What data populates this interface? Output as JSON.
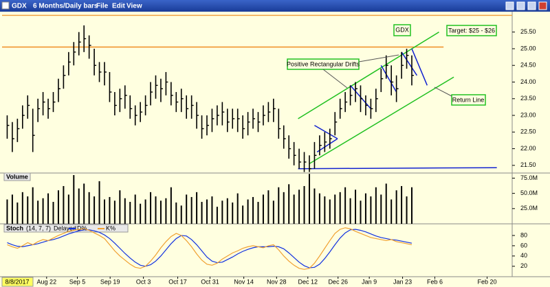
{
  "toolbar": {
    "symbol": "GDX",
    "period": "6 Months/Daily bars",
    "menus": [
      "File",
      "Edit",
      "View"
    ]
  },
  "annotations": [
    "GDX",
    "Target: $25 - $26",
    "Positive Rectangular Drifts",
    "Return Line"
  ],
  "chart_data": [
    {
      "type": "ohlc",
      "color": "#000000",
      "xlim": [
        -1,
        98.6
      ],
      "ylim": [
        21.27,
        26.05
      ],
      "yticks": [
        {
          "value": 21.5,
          "label": "21.50"
        },
        {
          "value": 22,
          "label": "22.00"
        },
        {
          "value": 22.5,
          "label": "22.50"
        },
        {
          "value": 23,
          "label": "23.00"
        },
        {
          "value": 23.5,
          "label": "23.50"
        },
        {
          "value": 24,
          "label": "24.00"
        },
        {
          "value": 24.5,
          "label": "24.50"
        },
        {
          "value": 25,
          "label": "25.00"
        },
        {
          "value": 25.5,
          "label": "25.50"
        }
      ],
      "values": [
        22.7,
        22.3,
        22.6,
        23.0,
        23.3,
        22.4,
        23.2,
        23.4,
        23.2,
        23.4,
        23.8,
        24.2,
        24.6,
        24.9,
        25.2,
        25.3,
        25.1,
        24.5,
        24.3,
        24.3,
        23.7,
        23.3,
        23.5,
        23.6,
        23.2,
        23.0,
        23.1,
        23.3,
        23.7,
        23.9,
        23.8,
        24.0,
        23.6,
        23.4,
        23.5,
        23.2,
        23.3,
        23.0,
        22.6,
        22.7,
        22.9,
        23.0,
        23.1,
        22.8,
        22.9,
        22.9,
        22.6,
        22.8,
        22.9,
        22.8,
        23.0,
        23.1,
        23.2,
        22.6,
        22.3,
        22.0,
        21.8,
        21.6,
        21.6,
        21.4,
        21.8,
        22.1,
        22.2,
        22.3,
        22.8,
        23.2,
        23.4,
        23.6,
        23.8,
        23.5,
        23.3,
        23.2,
        23.5,
        24.1,
        24.5,
        24.0,
        23.8,
        24.5,
        24.8,
        24.2
      ],
      "high": [
        23.0,
        22.8,
        22.9,
        23.3,
        23.6,
        23.2,
        23.5,
        23.7,
        23.5,
        23.7,
        24.1,
        24.5,
        24.9,
        25.2,
        25.5,
        25.7,
        25.4,
        25.0,
        24.6,
        24.6,
        24.3,
        23.7,
        23.8,
        23.9,
        23.6,
        23.3,
        23.4,
        23.6,
        24.0,
        24.2,
        24.1,
        24.3,
        24.0,
        23.7,
        23.8,
        23.6,
        23.6,
        23.4,
        23.0,
        23.0,
        23.2,
        23.3,
        23.4,
        23.2,
        23.2,
        23.2,
        23.0,
        23.1,
        23.2,
        23.1,
        23.3,
        23.4,
        23.5,
        23.2,
        22.7,
        22.4,
        22.2,
        22.0,
        21.9,
        21.8,
        22.2,
        22.4,
        22.5,
        22.6,
        23.1,
        23.5,
        23.7,
        23.9,
        24.0,
        23.9,
        23.6,
        23.5,
        23.8,
        24.4,
        24.8,
        24.5,
        24.2,
        24.9,
        25.0,
        24.8
      ],
      "low": [
        22.3,
        21.9,
        22.2,
        22.6,
        22.9,
        21.9,
        22.8,
        23.0,
        22.9,
        23.1,
        23.4,
        23.8,
        24.2,
        24.5,
        24.8,
        24.9,
        24.7,
        24.2,
        24.0,
        23.9,
        23.4,
        23.0,
        23.1,
        23.2,
        22.9,
        22.7,
        22.8,
        23.0,
        23.3,
        23.5,
        23.4,
        23.6,
        23.3,
        23.1,
        23.1,
        22.9,
        22.9,
        22.6,
        22.3,
        22.4,
        22.5,
        22.7,
        22.7,
        22.5,
        22.6,
        22.5,
        22.3,
        22.4,
        22.6,
        22.5,
        22.7,
        22.8,
        22.8,
        22.3,
        22.0,
        21.7,
        21.5,
        21.4,
        21.3,
        21.3,
        21.4,
        21.8,
        21.9,
        22.0,
        22.4,
        22.9,
        23.1,
        23.3,
        23.4,
        23.1,
        23.0,
        22.9,
        23.1,
        23.7,
        24.1,
        23.6,
        23.4,
        24.1,
        24.4,
        23.9
      ],
      "overlays": [
        {
          "color": "#f0a040",
          "points": [
            [
              -1,
              26.0
            ],
            [
              98.6,
              26.0
            ]
          ]
        },
        {
          "color": "#f08c20",
          "points": [
            [
              -1,
              25.05
            ],
            [
              85.2,
              25.05
            ]
          ]
        },
        {
          "color": "#1020d0",
          "points": [
            [
              56.8,
              21.4
            ],
            [
              95.6,
              21.43
            ]
          ]
        },
        {
          "color": "#20c020",
          "points": [
            [
              56.8,
              22.9
            ],
            [
              84.3,
              25.5
            ]
          ]
        },
        {
          "color": "#20c020",
          "points": [
            [
              59,
              21.55
            ],
            [
              87.2,
              24.15
            ]
          ]
        },
        {
          "color": "#1020d0",
          "points": [
            [
              60,
              22.7
            ],
            [
              64.5,
              22.3
            ]
          ]
        },
        {
          "color": "#1020d0",
          "points": [
            [
              60.5,
              21.9
            ],
            [
              64.5,
              22.3
            ]
          ]
        },
        {
          "color": "#1020d0",
          "points": [
            [
              67,
              23.9
            ],
            [
              71,
              23.2
            ]
          ]
        },
        {
          "color": "#1020d0",
          "points": [
            [
              73,
              24.5
            ],
            [
              76,
              23.7
            ]
          ]
        },
        {
          "color": "#1020d0",
          "points": [
            [
              77,
              24.9
            ],
            [
              80,
              24.2
            ]
          ]
        },
        {
          "color": "#1020d0",
          "points": [
            [
              79,
              25.0
            ],
            [
              82,
              23.9
            ]
          ]
        }
      ]
    },
    {
      "type": "bar",
      "title": "Volume",
      "color": "#000000",
      "xlim": [
        -1,
        98.6
      ],
      "ylim": [
        0,
        80
      ],
      "yticks": [
        {
          "value": 25,
          "label": "25.0M"
        },
        {
          "value": 50,
          "label": "50.0M"
        },
        {
          "value": 75,
          "label": "75.0M"
        }
      ],
      "values": [
        40,
        48,
        35,
        52,
        45,
        60,
        38,
        42,
        50,
        36,
        55,
        62,
        48,
        80,
        58,
        66,
        52,
        45,
        70,
        40,
        44,
        38,
        55,
        42,
        36,
        48,
        33,
        40,
        52,
        45,
        38,
        42,
        60,
        35,
        30,
        48,
        44,
        52,
        36,
        40,
        45,
        28,
        38,
        42,
        35,
        50,
        30,
        40,
        44,
        36,
        48,
        55,
        38,
        60,
        52,
        65,
        48,
        56,
        62,
        82,
        58,
        50,
        45,
        40,
        48,
        52,
        60,
        42,
        56,
        38,
        50,
        45,
        60,
        48,
        66,
        40,
        55,
        62,
        45,
        60
      ]
    },
    {
      "type": "line",
      "title": "Stoch",
      "subtitle": "(14, 7, 7)",
      "note": "Delayed",
      "xlim": [
        -1,
        98.6
      ],
      "ylim": [
        1,
        100
      ],
      "yticks": [
        20,
        40,
        60,
        80
      ],
      "cursor_label": "8/8/2017",
      "xticks": [
        {
          "value": 7.7,
          "label": "Aug 22"
        },
        {
          "value": 13.7,
          "label": "Sep 5"
        },
        {
          "value": 20.1,
          "label": "Sep 19"
        },
        {
          "value": 26.6,
          "label": "Oct 3"
        },
        {
          "value": 33.3,
          "label": "Oct 17"
        },
        {
          "value": 39.6,
          "label": "Oct 31"
        },
        {
          "value": 46.2,
          "label": "Nov 14"
        },
        {
          "value": 52.6,
          "label": "Nov 28"
        },
        {
          "value": 58.7,
          "label": "Dec 12"
        },
        {
          "value": 64.6,
          "label": "Dec 26"
        },
        {
          "value": 70.7,
          "label": "Jan 9"
        },
        {
          "value": 77.2,
          "label": "Jan 23"
        },
        {
          "value": 83.5,
          "label": "Feb 6"
        },
        {
          "value": 93.7,
          "label": "Feb 20"
        }
      ],
      "series": [
        {
          "name": "D%",
          "color": "#1030e0",
          "values": [
            66,
            62,
            59,
            58,
            60,
            62,
            64,
            67,
            70,
            72,
            75,
            79,
            83,
            86,
            89,
            91,
            91,
            89,
            86,
            81,
            74,
            65,
            55,
            45,
            36,
            28,
            22,
            20,
            23,
            30,
            40,
            52,
            64,
            74,
            80,
            79,
            72,
            62,
            50,
            38,
            30,
            27,
            28,
            33,
            38,
            44,
            49,
            53,
            56,
            58,
            58,
            58,
            59,
            58,
            54,
            46,
            37,
            28,
            21,
            17,
            18,
            24,
            35,
            48,
            62,
            75,
            85,
            91,
            92,
            90,
            87,
            83,
            79,
            76,
            74,
            72,
            71,
            69,
            67,
            65
          ]
        },
        {
          "name": "K%",
          "color": "#f0a030",
          "values": [
            62,
            58,
            55,
            60,
            66,
            62,
            68,
            72,
            70,
            75,
            80,
            84,
            88,
            90,
            92,
            93,
            90,
            85,
            80,
            74,
            62,
            50,
            40,
            32,
            24,
            18,
            16,
            20,
            30,
            42,
            56,
            68,
            78,
            84,
            80,
            70,
            58,
            44,
            32,
            24,
            22,
            26,
            34,
            40,
            46,
            50,
            55,
            58,
            60,
            58,
            56,
            60,
            62,
            52,
            40,
            30,
            22,
            16,
            14,
            16,
            26,
            40,
            55,
            70,
            84,
            92,
            95,
            93,
            88,
            84,
            80,
            76,
            74,
            72,
            70,
            72,
            68,
            66,
            64,
            62
          ]
        }
      ]
    }
  ]
}
